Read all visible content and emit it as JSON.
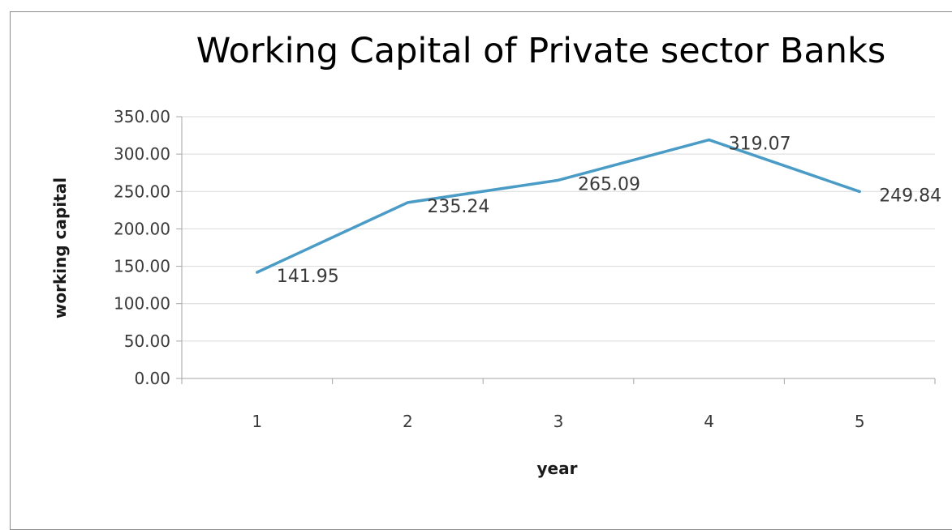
{
  "chart_data": {
    "type": "line",
    "title": "Working Capital of Private sector Banks",
    "xlabel": "year",
    "ylabel": "working capital",
    "categories": [
      "1",
      "2",
      "3",
      "4",
      "5"
    ],
    "series": [
      {
        "values": [
          141.95,
          235.24,
          265.09,
          319.07,
          249.84
        ],
        "value_labels": [
          "141.95",
          "235.24",
          "265.09",
          "319.07",
          "249.84"
        ]
      }
    ],
    "ylim": [
      0,
      350
    ],
    "yticks": [
      "0.00",
      "50.00",
      "100.00",
      "150.00",
      "200.00",
      "250.00",
      "300.00",
      "350.00"
    ],
    "grid": true,
    "legend": "none",
    "colors": {
      "line": "#4a9cc6",
      "grid": "#d9d9d9",
      "axis": "#a6a6a6"
    }
  }
}
